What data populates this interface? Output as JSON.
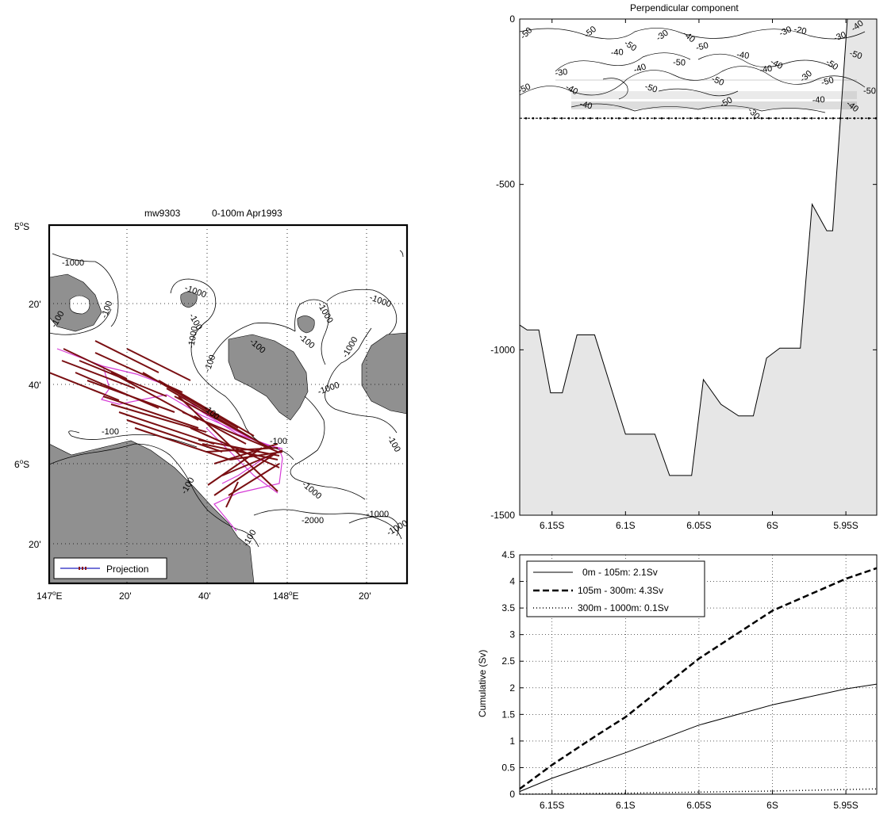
{
  "map": {
    "title_left": "mw9303",
    "title_right": "0-100m Apr1993",
    "lat_labels": [
      "5",
      "20'",
      "40'",
      "6",
      "20'"
    ],
    "lat_deg_suffix": "S",
    "lon_labels": [
      "147",
      "20'",
      "40'",
      "148",
      "20'"
    ],
    "lon_deg_suffix": "E",
    "legend": "Projection",
    "contour_labels": [
      "-1000",
      "-1000",
      "-1000",
      "-1000",
      "-1000",
      "-1000",
      "-1000",
      "-100",
      "-100",
      "-100",
      "-100",
      "-100",
      "-100",
      "-100",
      "-100",
      "-100",
      "-100",
      "-2000",
      "-1000",
      "-1000",
      "-1000",
      "-100",
      "-100"
    ],
    "colors": {
      "land": "#909090",
      "vectors": "#7a0f12",
      "track": "#d63bd6"
    }
  },
  "section": {
    "title": "Perpendicular component",
    "xlabels": [
      "6.15S",
      "6.1S",
      "6.05S",
      "6S",
      "5.95S"
    ],
    "ylabels": [
      "0",
      "-500",
      "-1000",
      "-1500"
    ],
    "contour_labels": [
      "-50",
      "-30",
      "-40",
      "-50",
      "-40",
      "-50",
      "-40",
      "-50",
      "-40",
      "-50",
      "-30",
      "-50",
      "-40",
      "-50",
      "-50",
      "-50",
      "-40",
      "-30",
      "-40",
      "-40",
      "-30",
      "-20",
      "-30",
      "-40",
      "-50",
      "-30",
      "-50",
      "-40",
      "-50",
      "-40",
      "-50"
    ],
    "colors": {
      "bathymetry_fill": "#e6e6e6"
    }
  },
  "chart_data": [
    {
      "type": "area",
      "title": "Perpendicular component",
      "xlabel": "",
      "ylabel": "",
      "xlim": [
        -6.172,
        -5.929
      ],
      "ylim": [
        -1500,
        0
      ],
      "xticks": [
        -6.15,
        -6.1,
        -6.05,
        -6.0,
        -5.95
      ],
      "yticks": [
        0,
        -500,
        -1000,
        -1500
      ],
      "bottom_profile": {
        "x": [
          -6.172,
          -6.167,
          -6.159,
          -6.151,
          -6.143,
          -6.133,
          -6.121,
          -6.1,
          -6.08,
          -6.07,
          -6.055,
          -6.047,
          -6.035,
          -6.023,
          -6.013,
          -6.004,
          -5.995,
          -5.981,
          -5.973,
          -5.963,
          -5.959,
          -5.949,
          -5.937
        ],
        "y": [
          -925,
          -940,
          -940,
          -1130,
          -1130,
          -955,
          -955,
          -1255,
          -1255,
          -1380,
          -1380,
          -1090,
          -1165,
          -1200,
          -1200,
          -1025,
          -995,
          -995,
          -560,
          -640,
          -640,
          0,
          0
        ]
      },
      "sample_depth": -300
    },
    {
      "type": "line",
      "title": "",
      "xlabel": "",
      "ylabel": "Cumulative (Sv)",
      "xlim": [
        -6.172,
        -5.929
      ],
      "ylim": [
        0,
        4.5
      ],
      "xticks": [
        -6.15,
        -6.1,
        -6.05,
        -6.0,
        -5.95
      ],
      "yticks": [
        0,
        0.5,
        1,
        1.5,
        2,
        2.5,
        3,
        3.5,
        4,
        4.5
      ],
      "grid": true,
      "legend_position": "top-left",
      "series": [
        {
          "name": "0m - 105m:  2.1Sv",
          "style": "solid",
          "x": [
            -6.172,
            -6.15,
            -6.1,
            -6.05,
            -6.0,
            -5.95,
            -5.929
          ],
          "y": [
            0.05,
            0.3,
            0.78,
            1.3,
            1.68,
            1.98,
            2.07
          ]
        },
        {
          "name": "105m - 300m:  4.3Sv",
          "style": "dashed",
          "x": [
            -6.172,
            -6.15,
            -6.12,
            -6.1,
            -6.05,
            -6.0,
            -5.95,
            -5.929
          ],
          "y": [
            0.1,
            0.55,
            1.1,
            1.45,
            2.55,
            3.45,
            4.05,
            4.25
          ]
        },
        {
          "name": "300m - 1000m:  0.1Sv",
          "style": "dotted",
          "x": [
            -6.172,
            -6.1,
            -6.0,
            -5.929
          ],
          "y": [
            0.0,
            0.02,
            0.06,
            0.1
          ]
        }
      ]
    }
  ]
}
